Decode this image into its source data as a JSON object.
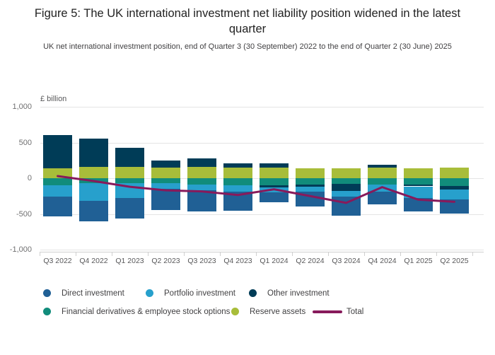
{
  "figure": {
    "title": "Figure 5: The UK international investment net liability position widened in the latest quarter",
    "subtitle": "UK net international investment position, end of Quarter 3 (30 September) 2022 to the end of Quarter 2 (30 June) 2025",
    "unit_label": "£ billion"
  },
  "colors": {
    "direct": "#206095",
    "portfolio": "#27A0CC",
    "other": "#003C57",
    "finderiv": "#118C7B",
    "reserve": "#A8BD3A",
    "total": "#871A5B",
    "gridline": "#e4e4e4",
    "axis_text": "#707071"
  },
  "legend": {
    "items": [
      {
        "label": "Direct investment",
        "color": "direct",
        "swatch": "circle"
      },
      {
        "label": "Portfolio investment",
        "color": "portfolio",
        "swatch": "circle"
      },
      {
        "label": "Other investment",
        "color": "other",
        "swatch": "circle"
      },
      {
        "label": "Financial derivatives & employee stock options",
        "color": "finderiv",
        "swatch": "circle"
      },
      {
        "label": "Reserve assets",
        "color": "reserve",
        "swatch": "circle"
      },
      {
        "label": "Total",
        "color": "total",
        "swatch": "line"
      }
    ]
  },
  "chart_data": {
    "type": "bar",
    "subtype": "stacked-column-with-line-overlay",
    "title": "Figure 5: The UK international investment net liability position widened in the latest quarter",
    "xlabel": "",
    "ylabel": "£ billion",
    "ylim": [
      -1000,
      1000
    ],
    "grid": true,
    "legend_position": "bottom",
    "yticks": [
      {
        "label": "1,000",
        "value": 1000
      },
      {
        "label": "500",
        "value": 500
      },
      {
        "label": "0",
        "value": 0
      },
      {
        "label": "-500",
        "value": -500
      },
      {
        "label": "-1,000",
        "value": -1000
      }
    ],
    "categories": [
      "Q3 2022",
      "Q4 2022",
      "Q1 2023",
      "Q2 2023",
      "Q3 2023",
      "Q4 2023",
      "Q1 2024",
      "Q2 2024",
      "Q3 2024",
      "Q4 2024",
      "Q1 2025",
      "Q2 2025"
    ],
    "stacking_note": "values are segment magnitudes in £bn; pos listed from zero upward, neg listed from zero downward",
    "stacks": [
      {
        "pos": [
          {
            "c": "reserve",
            "v": 140
          },
          {
            "c": "other",
            "v": 460
          }
        ],
        "neg": [
          {
            "c": "finderiv",
            "v": 95
          },
          {
            "c": "portfolio",
            "v": 165
          },
          {
            "c": "direct",
            "v": 270
          }
        ]
      },
      {
        "pos": [
          {
            "c": "reserve",
            "v": 158
          },
          {
            "c": "other",
            "v": 392
          }
        ],
        "neg": [
          {
            "c": "finderiv",
            "v": 72
          },
          {
            "c": "portfolio",
            "v": 240
          },
          {
            "c": "direct",
            "v": 288
          }
        ]
      },
      {
        "pos": [
          {
            "c": "reserve",
            "v": 155
          },
          {
            "c": "other",
            "v": 275
          }
        ],
        "neg": [
          {
            "c": "finderiv",
            "v": 72
          },
          {
            "c": "portfolio",
            "v": 207
          },
          {
            "c": "direct",
            "v": 281
          }
        ]
      },
      {
        "pos": [
          {
            "c": "reserve",
            "v": 145
          },
          {
            "c": "other",
            "v": 105
          }
        ],
        "neg": [
          {
            "c": "finderiv",
            "v": 65
          },
          {
            "c": "portfolio",
            "v": 86
          },
          {
            "c": "direct",
            "v": 294
          }
        ]
      },
      {
        "pos": [
          {
            "c": "reserve",
            "v": 158
          },
          {
            "c": "other",
            "v": 122
          }
        ],
        "neg": [
          {
            "c": "finderiv",
            "v": 85
          },
          {
            "c": "portfolio",
            "v": 86
          },
          {
            "c": "direct",
            "v": 294
          }
        ]
      },
      {
        "pos": [
          {
            "c": "reserve",
            "v": 145
          },
          {
            "c": "other",
            "v": 65
          }
        ],
        "neg": [
          {
            "c": "finderiv",
            "v": 99
          },
          {
            "c": "portfolio",
            "v": 91
          },
          {
            "c": "direct",
            "v": 270
          }
        ]
      },
      {
        "pos": [
          {
            "c": "reserve",
            "v": 148
          },
          {
            "c": "other",
            "v": 59
          }
        ],
        "neg": [
          {
            "c": "finderiv",
            "v": 96
          },
          {
            "c": "other",
            "v": 33
          },
          {
            "c": "portfolio",
            "v": 66
          },
          {
            "c": "direct",
            "v": 145
          }
        ]
      },
      {
        "pos": [
          {
            "c": "reserve",
            "v": 138
          }
        ],
        "neg": [
          {
            "c": "finderiv",
            "v": 86
          },
          {
            "c": "other",
            "v": 30
          },
          {
            "c": "portfolio",
            "v": 74
          },
          {
            "c": "direct",
            "v": 205
          }
        ]
      },
      {
        "pos": [
          {
            "c": "reserve",
            "v": 138
          }
        ],
        "neg": [
          {
            "c": "finderiv",
            "v": 76
          },
          {
            "c": "other",
            "v": 105
          },
          {
            "c": "portfolio",
            "v": 76
          },
          {
            "c": "direct",
            "v": 270
          }
        ]
      },
      {
        "pos": [
          {
            "c": "reserve",
            "v": 148
          },
          {
            "c": "other",
            "v": 44
          }
        ],
        "neg": [
          {
            "c": "finderiv",
            "v": 89
          },
          {
            "c": "portfolio",
            "v": 99
          },
          {
            "c": "direct",
            "v": 182
          }
        ]
      },
      {
        "pos": [
          {
            "c": "reserve",
            "v": 138
          }
        ],
        "neg": [
          {
            "c": "finderiv",
            "v": 86
          },
          {
            "c": "other",
            "v": 28
          },
          {
            "c": "portfolio",
            "v": 160
          },
          {
            "c": "direct",
            "v": 190
          }
        ]
      },
      {
        "pos": [
          {
            "c": "reserve",
            "v": 145
          }
        ],
        "neg": [
          {
            "c": "finderiv",
            "v": 106
          },
          {
            "c": "other",
            "v": 49
          },
          {
            "c": "portfolio",
            "v": 142
          },
          {
            "c": "direct",
            "v": 198
          }
        ]
      }
    ],
    "total_line": {
      "name": "Total",
      "values": [
        30,
        -40,
        -120,
        -170,
        -185,
        -235,
        -155,
        -250,
        -345,
        -125,
        -300,
        -330
      ]
    }
  }
}
